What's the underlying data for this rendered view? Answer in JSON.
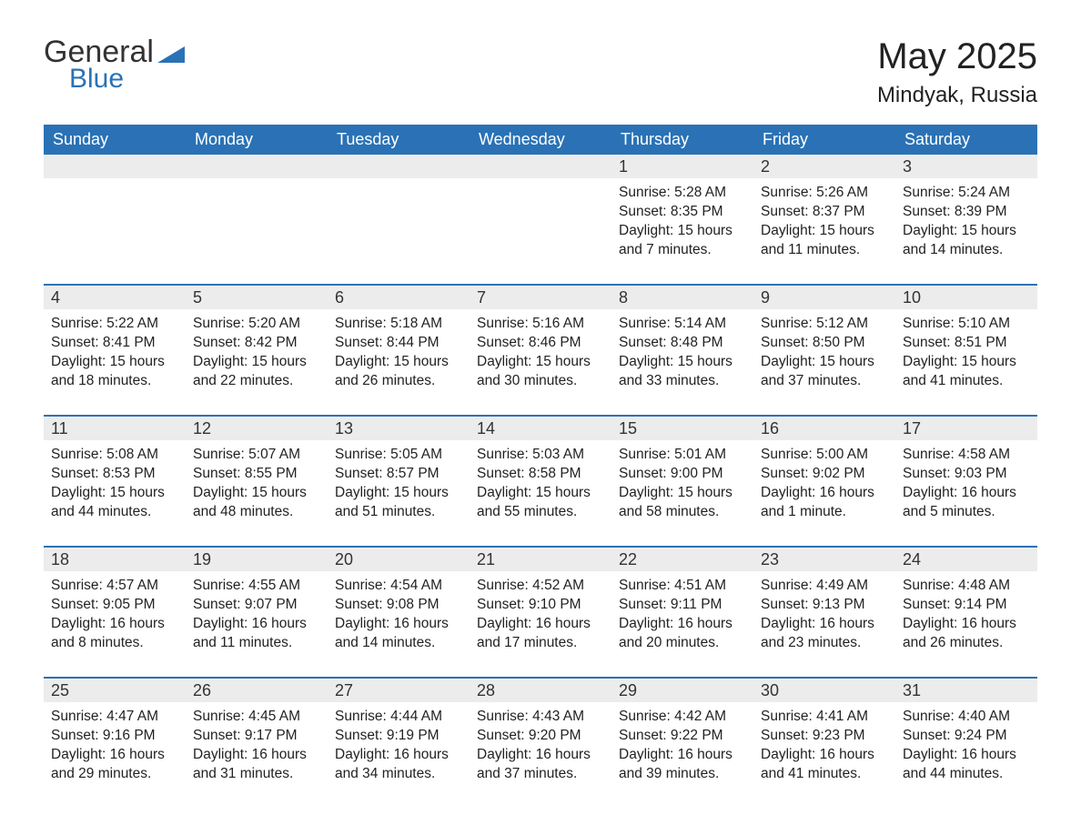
{
  "logo": {
    "word1": "General",
    "word2": "Blue"
  },
  "title": "May 2025",
  "location": "Mindyak, Russia",
  "weekdays": [
    "Sunday",
    "Monday",
    "Tuesday",
    "Wednesday",
    "Thursday",
    "Friday",
    "Saturday"
  ],
  "colors": {
    "header_bg": "#2a72b5",
    "header_text": "#ffffff",
    "daynum_bg": "#ececec",
    "row_divider": "#2a72b5",
    "logo_blue": "#2a72b5"
  },
  "weeks": [
    [
      {
        "day": "",
        "sunrise": "",
        "sunset": "",
        "daylight": []
      },
      {
        "day": "",
        "sunrise": "",
        "sunset": "",
        "daylight": []
      },
      {
        "day": "",
        "sunrise": "",
        "sunset": "",
        "daylight": []
      },
      {
        "day": "",
        "sunrise": "",
        "sunset": "",
        "daylight": []
      },
      {
        "day": "1",
        "sunrise": "Sunrise: 5:28 AM",
        "sunset": "Sunset: 8:35 PM",
        "daylight": [
          "Daylight: 15 hours",
          "and 7 minutes."
        ]
      },
      {
        "day": "2",
        "sunrise": "Sunrise: 5:26 AM",
        "sunset": "Sunset: 8:37 PM",
        "daylight": [
          "Daylight: 15 hours",
          "and 11 minutes."
        ]
      },
      {
        "day": "3",
        "sunrise": "Sunrise: 5:24 AM",
        "sunset": "Sunset: 8:39 PM",
        "daylight": [
          "Daylight: 15 hours",
          "and 14 minutes."
        ]
      }
    ],
    [
      {
        "day": "4",
        "sunrise": "Sunrise: 5:22 AM",
        "sunset": "Sunset: 8:41 PM",
        "daylight": [
          "Daylight: 15 hours",
          "and 18 minutes."
        ]
      },
      {
        "day": "5",
        "sunrise": "Sunrise: 5:20 AM",
        "sunset": "Sunset: 8:42 PM",
        "daylight": [
          "Daylight: 15 hours",
          "and 22 minutes."
        ]
      },
      {
        "day": "6",
        "sunrise": "Sunrise: 5:18 AM",
        "sunset": "Sunset: 8:44 PM",
        "daylight": [
          "Daylight: 15 hours",
          "and 26 minutes."
        ]
      },
      {
        "day": "7",
        "sunrise": "Sunrise: 5:16 AM",
        "sunset": "Sunset: 8:46 PM",
        "daylight": [
          "Daylight: 15 hours",
          "and 30 minutes."
        ]
      },
      {
        "day": "8",
        "sunrise": "Sunrise: 5:14 AM",
        "sunset": "Sunset: 8:48 PM",
        "daylight": [
          "Daylight: 15 hours",
          "and 33 minutes."
        ]
      },
      {
        "day": "9",
        "sunrise": "Sunrise: 5:12 AM",
        "sunset": "Sunset: 8:50 PM",
        "daylight": [
          "Daylight: 15 hours",
          "and 37 minutes."
        ]
      },
      {
        "day": "10",
        "sunrise": "Sunrise: 5:10 AM",
        "sunset": "Sunset: 8:51 PM",
        "daylight": [
          "Daylight: 15 hours",
          "and 41 minutes."
        ]
      }
    ],
    [
      {
        "day": "11",
        "sunrise": "Sunrise: 5:08 AM",
        "sunset": "Sunset: 8:53 PM",
        "daylight": [
          "Daylight: 15 hours",
          "and 44 minutes."
        ]
      },
      {
        "day": "12",
        "sunrise": "Sunrise: 5:07 AM",
        "sunset": "Sunset: 8:55 PM",
        "daylight": [
          "Daylight: 15 hours",
          "and 48 minutes."
        ]
      },
      {
        "day": "13",
        "sunrise": "Sunrise: 5:05 AM",
        "sunset": "Sunset: 8:57 PM",
        "daylight": [
          "Daylight: 15 hours",
          "and 51 minutes."
        ]
      },
      {
        "day": "14",
        "sunrise": "Sunrise: 5:03 AM",
        "sunset": "Sunset: 8:58 PM",
        "daylight": [
          "Daylight: 15 hours",
          "and 55 minutes."
        ]
      },
      {
        "day": "15",
        "sunrise": "Sunrise: 5:01 AM",
        "sunset": "Sunset: 9:00 PM",
        "daylight": [
          "Daylight: 15 hours",
          "and 58 minutes."
        ]
      },
      {
        "day": "16",
        "sunrise": "Sunrise: 5:00 AM",
        "sunset": "Sunset: 9:02 PM",
        "daylight": [
          "Daylight: 16 hours",
          "and 1 minute."
        ]
      },
      {
        "day": "17",
        "sunrise": "Sunrise: 4:58 AM",
        "sunset": "Sunset: 9:03 PM",
        "daylight": [
          "Daylight: 16 hours",
          "and 5 minutes."
        ]
      }
    ],
    [
      {
        "day": "18",
        "sunrise": "Sunrise: 4:57 AM",
        "sunset": "Sunset: 9:05 PM",
        "daylight": [
          "Daylight: 16 hours",
          "and 8 minutes."
        ]
      },
      {
        "day": "19",
        "sunrise": "Sunrise: 4:55 AM",
        "sunset": "Sunset: 9:07 PM",
        "daylight": [
          "Daylight: 16 hours",
          "and 11 minutes."
        ]
      },
      {
        "day": "20",
        "sunrise": "Sunrise: 4:54 AM",
        "sunset": "Sunset: 9:08 PM",
        "daylight": [
          "Daylight: 16 hours",
          "and 14 minutes."
        ]
      },
      {
        "day": "21",
        "sunrise": "Sunrise: 4:52 AM",
        "sunset": "Sunset: 9:10 PM",
        "daylight": [
          "Daylight: 16 hours",
          "and 17 minutes."
        ]
      },
      {
        "day": "22",
        "sunrise": "Sunrise: 4:51 AM",
        "sunset": "Sunset: 9:11 PM",
        "daylight": [
          "Daylight: 16 hours",
          "and 20 minutes."
        ]
      },
      {
        "day": "23",
        "sunrise": "Sunrise: 4:49 AM",
        "sunset": "Sunset: 9:13 PM",
        "daylight": [
          "Daylight: 16 hours",
          "and 23 minutes."
        ]
      },
      {
        "day": "24",
        "sunrise": "Sunrise: 4:48 AM",
        "sunset": "Sunset: 9:14 PM",
        "daylight": [
          "Daylight: 16 hours",
          "and 26 minutes."
        ]
      }
    ],
    [
      {
        "day": "25",
        "sunrise": "Sunrise: 4:47 AM",
        "sunset": "Sunset: 9:16 PM",
        "daylight": [
          "Daylight: 16 hours",
          "and 29 minutes."
        ]
      },
      {
        "day": "26",
        "sunrise": "Sunrise: 4:45 AM",
        "sunset": "Sunset: 9:17 PM",
        "daylight": [
          "Daylight: 16 hours",
          "and 31 minutes."
        ]
      },
      {
        "day": "27",
        "sunrise": "Sunrise: 4:44 AM",
        "sunset": "Sunset: 9:19 PM",
        "daylight": [
          "Daylight: 16 hours",
          "and 34 minutes."
        ]
      },
      {
        "day": "28",
        "sunrise": "Sunrise: 4:43 AM",
        "sunset": "Sunset: 9:20 PM",
        "daylight": [
          "Daylight: 16 hours",
          "and 37 minutes."
        ]
      },
      {
        "day": "29",
        "sunrise": "Sunrise: 4:42 AM",
        "sunset": "Sunset: 9:22 PM",
        "daylight": [
          "Daylight: 16 hours",
          "and 39 minutes."
        ]
      },
      {
        "day": "30",
        "sunrise": "Sunrise: 4:41 AM",
        "sunset": "Sunset: 9:23 PM",
        "daylight": [
          "Daylight: 16 hours",
          "and 41 minutes."
        ]
      },
      {
        "day": "31",
        "sunrise": "Sunrise: 4:40 AM",
        "sunset": "Sunset: 9:24 PM",
        "daylight": [
          "Daylight: 16 hours",
          "and 44 minutes."
        ]
      }
    ]
  ]
}
